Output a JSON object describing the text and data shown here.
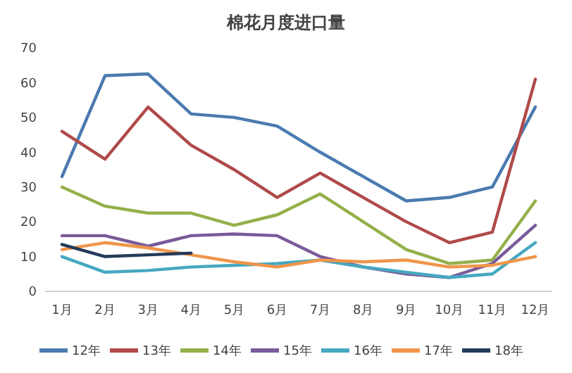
{
  "chart_data": {
    "type": "line",
    "title": "棉花月度进口量",
    "categories": [
      "1月",
      "2月",
      "3月",
      "4月",
      "5月",
      "6月",
      "7月",
      "8月",
      "9月",
      "10月",
      "11月",
      "12月"
    ],
    "series": [
      {
        "name": "12年",
        "color": "#4a7ab0",
        "values": [
          33,
          62,
          62.5,
          51,
          50,
          47.5,
          40,
          33,
          26,
          27,
          30,
          53
        ]
      },
      {
        "name": "13年",
        "color": "#b04a4a",
        "values": [
          46,
          38,
          53,
          42,
          35,
          27,
          34,
          27,
          20,
          14,
          17,
          61
        ]
      },
      {
        "name": "14年",
        "color": "#94b04a",
        "values": [
          30,
          24.5,
          22.5,
          22.5,
          19,
          22,
          28,
          20,
          12,
          8,
          9,
          26
        ]
      },
      {
        "name": "15年",
        "color": "#7a5a9a",
        "values": [
          16,
          16,
          13,
          16,
          16.5,
          16,
          10,
          7,
          5,
          4,
          8,
          19
        ]
      },
      {
        "name": "16年",
        "color": "#45a8c0",
        "values": [
          10,
          5.5,
          6,
          7,
          7.5,
          8,
          9,
          7,
          5.5,
          4,
          5,
          14
        ]
      },
      {
        "name": "17年",
        "color": "#f0954a",
        "values": [
          12,
          14,
          12.5,
          10.5,
          8.5,
          7,
          9,
          8.5,
          9,
          7,
          7.5,
          10
        ]
      },
      {
        "name": "18年",
        "color": "#243a5a",
        "values": [
          13.5,
          10,
          10.5,
          11,
          null,
          null,
          null,
          null,
          null,
          null,
          null,
          null
        ]
      }
    ],
    "ylim": [
      0,
      70
    ],
    "yticks": [
      0,
      10,
      20,
      30,
      40,
      50,
      60,
      70
    ],
    "grid": false,
    "legend": "bottom",
    "marker": "none",
    "line_style": "solid"
  }
}
